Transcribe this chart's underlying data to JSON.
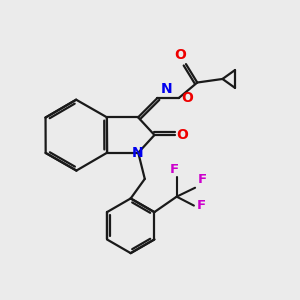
{
  "bg_color": "#ebebeb",
  "bond_color": "#1a1a1a",
  "N_color": "#0000ee",
  "O_color": "#ee0000",
  "F_color": "#cc00cc",
  "lw": 1.6,
  "figsize": [
    3.0,
    3.0
  ],
  "dpi": 100,
  "xlim": [
    0,
    10
  ],
  "ylim": [
    0,
    10
  ]
}
